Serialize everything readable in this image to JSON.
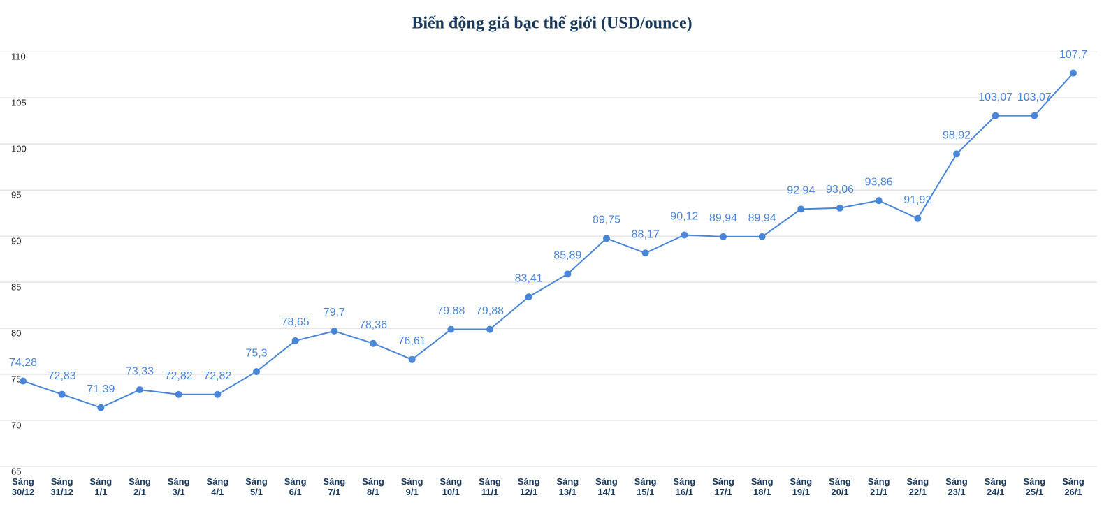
{
  "chart_data": {
    "type": "line",
    "title": "Biến động giá bạc thế giới (USD/ounce)",
    "categories": [
      "Sáng 30/12",
      "Sáng 31/12",
      "Sáng 1/1",
      "Sáng 2/1",
      "Sáng 3/1",
      "Sáng 4/1",
      "Sáng 5/1",
      "Sáng 6/1",
      "Sáng 7/1",
      "Sáng 8/1",
      "Sáng 9/1",
      "Sáng 10/1",
      "Sáng 11/1",
      "Sáng 12/1",
      "Sáng 13/1",
      "Sáng 14/1",
      "Sáng 15/1",
      "Sáng 16/1",
      "Sáng 17/1",
      "Sáng 18/1",
      "Sáng 19/1",
      "Sáng 20/1",
      "Sáng 21/1",
      "Sáng 22/1",
      "Sáng 23/1",
      "Sáng 24/1",
      "Sáng 25/1",
      "Sáng 26/1"
    ],
    "series": [
      {
        "name": "Giá bạc",
        "color": "#4a86d8",
        "values": [
          74.28,
          72.83,
          71.39,
          73.33,
          72.82,
          72.82,
          75.3,
          78.65,
          79.7,
          78.36,
          76.61,
          79.88,
          79.88,
          83.41,
          85.89,
          89.75,
          88.17,
          90.12,
          89.94,
          89.94,
          92.94,
          93.06,
          93.86,
          91.92,
          98.92,
          103.07,
          103.07,
          107.7
        ],
        "value_labels": [
          "74,28",
          "72,83",
          "71,39",
          "73,33",
          "72,82",
          "72,82",
          "75,3",
          "78,65",
          "79,7",
          "78,36",
          "76,61",
          "79,88",
          "79,88",
          "83,41",
          "85,89",
          "89,75",
          "88,17",
          "90,12",
          "89,94",
          "89,94",
          "92,94",
          "93,06",
          "93,86",
          "91,92",
          "98,92",
          "103,07",
          "103,07",
          "107,7"
        ]
      }
    ],
    "ylim": [
      65,
      111
    ],
    "yticks": [
      65,
      70,
      75,
      80,
      85,
      90,
      95,
      100,
      105,
      110
    ],
    "grid": true
  }
}
